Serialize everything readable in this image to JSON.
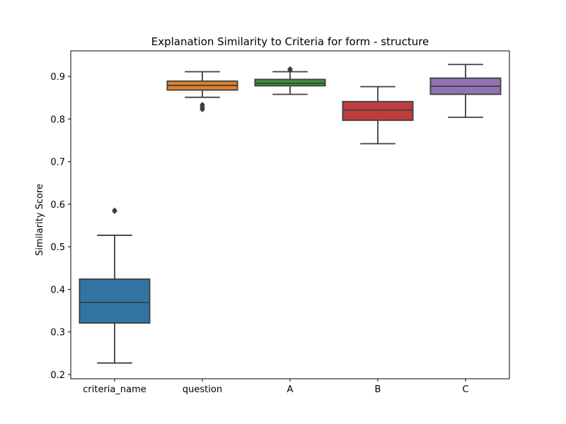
{
  "chart_data": {
    "type": "box",
    "title": "Explanation Similarity to Criteria for form - structure",
    "xlabel": "",
    "ylabel": "Similarity Score",
    "ylim": [
      0.19,
      0.96
    ],
    "yticks": [
      "0.2",
      "0.3",
      "0.4",
      "0.5",
      "0.6",
      "0.7",
      "0.8",
      "0.9"
    ],
    "grid": false,
    "categories": [
      "criteria_name",
      "question",
      "A",
      "B",
      "C"
    ],
    "boxes": [
      {
        "category": "criteria_name",
        "color": "#3274a1",
        "whisker_low": 0.227,
        "q1": 0.321,
        "median": 0.369,
        "q3": 0.424,
        "whisker_high": 0.527,
        "outliers": [
          0.586,
          0.583
        ]
      },
      {
        "category": "question",
        "color": "#e1812c",
        "whisker_low": 0.851,
        "q1": 0.868,
        "median": 0.879,
        "q3": 0.889,
        "whisker_high": 0.911,
        "outliers": [
          0.834,
          0.831,
          0.828,
          0.825,
          0.822
        ]
      },
      {
        "category": "A",
        "color": "#3a923a",
        "whisker_low": 0.858,
        "q1": 0.878,
        "median": 0.884,
        "q3": 0.893,
        "whisker_high": 0.911,
        "outliers": [
          0.914,
          0.917,
          0.918
        ]
      },
      {
        "category": "B",
        "color": "#c03d3e",
        "whisker_low": 0.742,
        "q1": 0.797,
        "median": 0.821,
        "q3": 0.841,
        "whisker_high": 0.876,
        "outliers": []
      },
      {
        "category": "C",
        "color": "#9372b2",
        "whisker_low": 0.804,
        "q1": 0.858,
        "median": 0.877,
        "q3": 0.896,
        "whisker_high": 0.928,
        "outliers": []
      }
    ]
  }
}
